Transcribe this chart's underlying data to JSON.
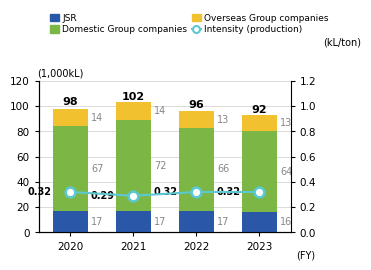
{
  "years": [
    "2020",
    "2021",
    "2022",
    "2023"
  ],
  "jsr": [
    17,
    17,
    17,
    16
  ],
  "domestic": [
    67,
    72,
    66,
    64
  ],
  "overseas": [
    14,
    14,
    13,
    13
  ],
  "totals": [
    98,
    102,
    96,
    92
  ],
  "intensity": [
    0.32,
    0.29,
    0.32,
    0.32
  ],
  "color_jsr": "#2a57a8",
  "color_domestic": "#7cb645",
  "color_overseas": "#f2c130",
  "color_intensity": "#5bc8d2",
  "ylabel_left": "(1,000kL)",
  "ylabel_right": "(kL/ton)",
  "xlabel": "(FY)",
  "ylim_left": [
    0,
    120
  ],
  "ylim_right": [
    0,
    1.2
  ],
  "yticks_left": [
    0,
    20,
    40,
    60,
    80,
    100,
    120
  ],
  "yticks_right": [
    0,
    0.2,
    0.4,
    0.6,
    0.8,
    1.0,
    1.2
  ],
  "legend_labels": [
    "JSR",
    "Domestic Group companies",
    "Overseas Group companies",
    "Intensity (production)"
  ],
  "label_fontsize": 7,
  "tick_fontsize": 7.5,
  "segment_label_color": "#888888"
}
